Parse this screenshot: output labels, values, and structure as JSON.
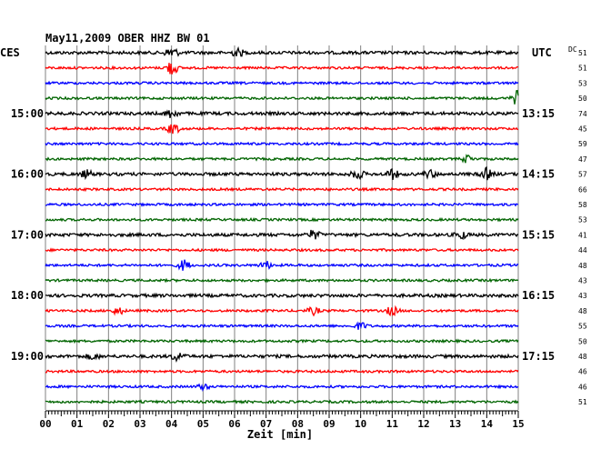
{
  "chart_data": {
    "type": "line",
    "title": "May11,2009   OBER HHZ BW 01",
    "left_label": "CES",
    "right_label": "UTC",
    "dc_label": "DC",
    "xlabel": "Zeit [min]",
    "xlim": [
      0,
      15
    ],
    "x_ticks": [
      "00",
      "01",
      "02",
      "03",
      "04",
      "05",
      "06",
      "07",
      "08",
      "09",
      "10",
      "11",
      "12",
      "13",
      "14",
      "15"
    ],
    "grid": true,
    "left_hour_labels": [
      {
        "trace": 4,
        "text": "15:00"
      },
      {
        "trace": 8,
        "text": "16:00"
      },
      {
        "trace": 12,
        "text": "17:00"
      },
      {
        "trace": 16,
        "text": "18:00"
      },
      {
        "trace": 20,
        "text": "19:00"
      }
    ],
    "right_hour_labels": [
      {
        "trace": 4,
        "text": "13:15"
      },
      {
        "trace": 8,
        "text": "14:15"
      },
      {
        "trace": 12,
        "text": "15:15"
      },
      {
        "trace": 16,
        "text": "16:15"
      },
      {
        "trace": 20,
        "text": "17:15"
      }
    ],
    "trace_colors": [
      "#000000",
      "#ff0000",
      "#0000ff",
      "#006400"
    ],
    "dc_values": [
      "51",
      "51",
      "53",
      "50",
      "74",
      "45",
      "59",
      "47",
      "57",
      "66",
      "58",
      "53",
      "41",
      "44",
      "48",
      "43",
      "43",
      "48",
      "55",
      "50",
      "48",
      "46",
      "46",
      "51"
    ],
    "events": [
      {
        "trace": 0,
        "minute": 4.0,
        "amp": 6
      },
      {
        "trace": 0,
        "minute": 6.1,
        "amp": 4
      },
      {
        "trace": 1,
        "minute": 4.0,
        "amp": 8
      },
      {
        "trace": 3,
        "minute": 15.0,
        "amp": 9
      },
      {
        "trace": 4,
        "minute": 4.0,
        "amp": 5
      },
      {
        "trace": 5,
        "minute": 4.05,
        "amp": 6
      },
      {
        "trace": 7,
        "minute": 13.4,
        "amp": 4
      },
      {
        "trace": 8,
        "minute": 1.3,
        "amp": 4
      },
      {
        "trace": 8,
        "minute": 9.9,
        "amp": 5
      },
      {
        "trace": 8,
        "minute": 11.0,
        "amp": 5
      },
      {
        "trace": 8,
        "minute": 12.2,
        "amp": 4
      },
      {
        "trace": 8,
        "minute": 14.0,
        "amp": 6
      },
      {
        "trace": 12,
        "minute": 8.5,
        "amp": 5
      },
      {
        "trace": 12,
        "minute": 13.2,
        "amp": 4
      },
      {
        "trace": 14,
        "minute": 4.4,
        "amp": 6
      },
      {
        "trace": 14,
        "minute": 7.0,
        "amp": 4
      },
      {
        "trace": 17,
        "minute": 2.3,
        "amp": 4
      },
      {
        "trace": 17,
        "minute": 8.5,
        "amp": 4
      },
      {
        "trace": 17,
        "minute": 11.0,
        "amp": 5
      },
      {
        "trace": 18,
        "minute": 10.0,
        "amp": 4
      },
      {
        "trace": 20,
        "minute": 4.2,
        "amp": 5
      },
      {
        "trace": 20,
        "minute": 1.5,
        "amp": 3
      },
      {
        "trace": 22,
        "minute": 5.0,
        "amp": 3
      }
    ]
  }
}
